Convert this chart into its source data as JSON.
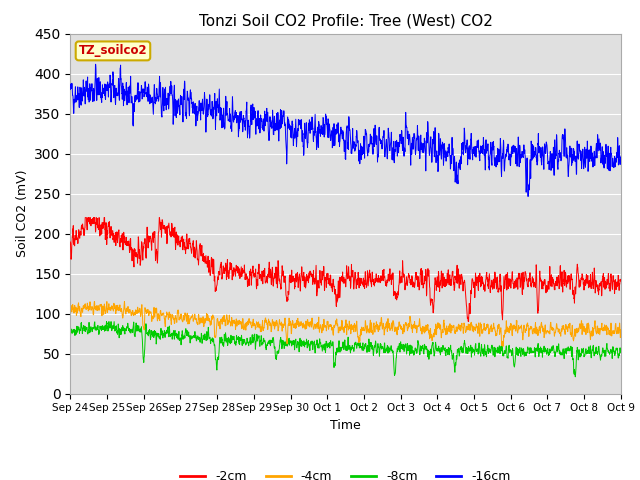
{
  "title": "Tonzi Soil CO2 Profile: Tree (West) CO2",
  "ylabel": "Soil CO2 (mV)",
  "xlabel": "Time",
  "legend_label": "TZ_soilco2",
  "ylim": [
    0,
    450
  ],
  "xtick_labels": [
    "Sep 24",
    "Sep 25",
    "Sep 26",
    "Sep 27",
    "Sep 28",
    "Sep 29",
    "Sep 30",
    "Oct 1",
    "Oct 2",
    "Oct 3",
    "Oct 4",
    "Oct 5",
    "Oct 6",
    "Oct 7",
    "Oct 8",
    "Oct 9"
  ],
  "series_labels": [
    "-2cm",
    "-4cm",
    "-8cm",
    "-16cm"
  ],
  "series_colors": [
    "#ff0000",
    "#ffa500",
    "#00cc00",
    "#0000ff"
  ],
  "plot_bg_color": "#e0e0e0",
  "title_fontsize": 11,
  "axis_fontsize": 9,
  "tick_fontsize": 7.5,
  "legend_box_facecolor": "#ffffcc",
  "legend_box_edgecolor": "#ccaa00",
  "legend_text_color": "#cc0000",
  "grid_color": "#ffffff",
  "yticks": [
    0,
    50,
    100,
    150,
    200,
    250,
    300,
    350,
    400,
    450
  ]
}
